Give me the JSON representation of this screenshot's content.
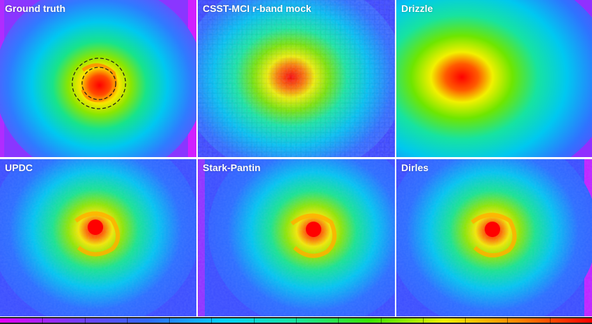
{
  "panels": [
    {
      "label": "Ground truth"
    },
    {
      "label": "CSST-MCI r-band mock"
    },
    {
      "label": "Drizzle"
    },
    {
      "label": "UPDC"
    },
    {
      "label": "Stark-Pantin"
    },
    {
      "label": "Dirles"
    }
  ],
  "colormap": [
    "#e600ff",
    "#7a3cff",
    "#2f6bff",
    "#00d4ff",
    "#16e6a0",
    "#39e600",
    "#f2f200",
    "#ff8800",
    "#ff0000"
  ]
}
